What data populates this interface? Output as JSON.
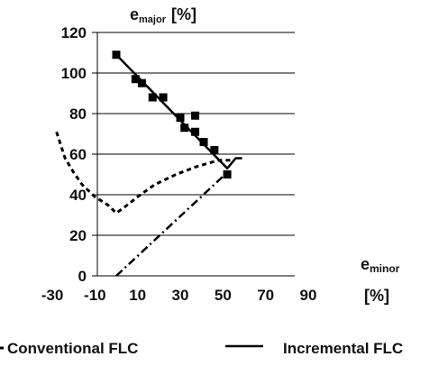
{
  "chart_data": {
    "type": "scatter",
    "ylabel_main": "e",
    "ylabel_sub": "major",
    "ylabel_unit": "[%]",
    "xlabel_main": "e",
    "xlabel_sub": "minor",
    "xlabel_unit": "[%]",
    "xlim": [
      -30,
      90
    ],
    "ylim": [
      0,
      120
    ],
    "x_ticks": [
      -30,
      -10,
      10,
      30,
      50,
      70,
      90
    ],
    "y_ticks": [
      0,
      20,
      40,
      60,
      80,
      100,
      120
    ],
    "grid": "horizontal",
    "legend_position": "bottom",
    "series": [
      {
        "name": "",
        "style": "markers",
        "marker": "square",
        "points": [
          [
            0,
            109
          ],
          [
            9,
            97
          ],
          [
            12,
            95
          ],
          [
            17,
            88
          ],
          [
            22,
            88
          ],
          [
            30,
            78
          ],
          [
            32,
            73
          ],
          [
            37,
            79
          ],
          [
            37,
            71
          ],
          [
            41,
            66
          ],
          [
            46,
            62
          ],
          [
            52,
            50
          ]
        ]
      },
      {
        "name": "",
        "style": "solid",
        "points": [
          [
            0,
            109
          ],
          [
            52,
            53
          ],
          [
            56,
            58
          ],
          [
            59,
            58
          ]
        ]
      },
      {
        "name": "Conventional FLC",
        "style": "dashed",
        "points": [
          [
            -28,
            71
          ],
          [
            -24,
            58
          ],
          [
            -20,
            51
          ],
          [
            -16,
            45
          ],
          [
            -10,
            39
          ],
          [
            -4,
            35
          ],
          [
            0,
            31
          ],
          [
            4,
            34
          ],
          [
            10,
            39
          ],
          [
            18,
            45
          ],
          [
            28,
            50
          ],
          [
            38,
            54
          ],
          [
            48,
            57
          ],
          [
            54,
            57
          ]
        ]
      },
      {
        "name": "Incremental FLC",
        "style": "dash-dot",
        "points": [
          [
            0,
            0
          ],
          [
            52,
            51
          ]
        ]
      }
    ]
  }
}
